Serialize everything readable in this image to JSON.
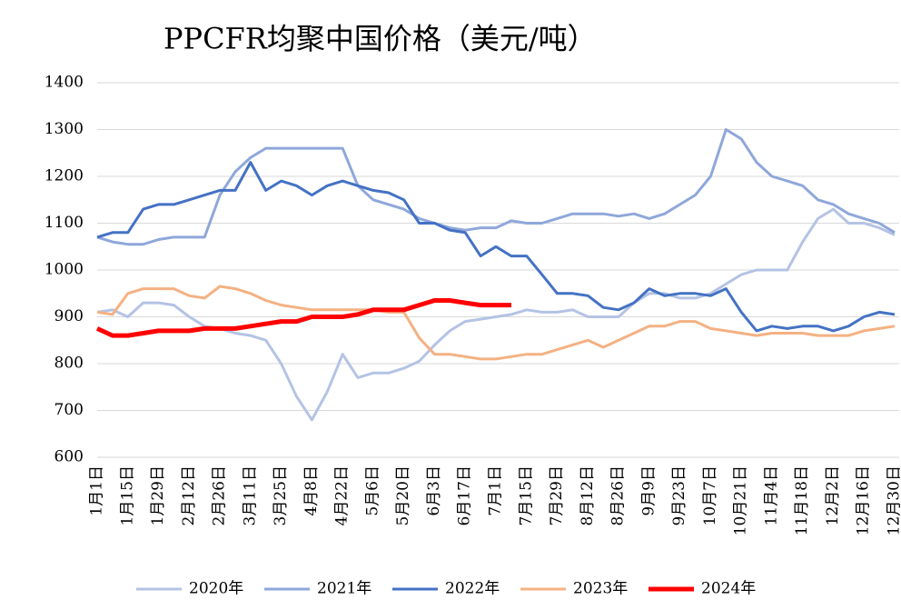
{
  "chart_data": {
    "type": "line",
    "title": "PPCFR均聚中国价格（美元/吨）",
    "categories": [
      "1月1日",
      null,
      "1月15日",
      null,
      "1月29日",
      null,
      "2月12日",
      null,
      "2月26日",
      null,
      "3月11日",
      null,
      "3月25日",
      null,
      "4月8日",
      null,
      "4月22日",
      null,
      "5月6日",
      null,
      "5月20日",
      null,
      "6月3日",
      null,
      "6月17日",
      null,
      "7月1日",
      null,
      "7月15日",
      null,
      "7月29日",
      null,
      "8月12日",
      null,
      "8月26日",
      null,
      "9月9日",
      null,
      "9月23日",
      null,
      "10月7日",
      null,
      "10月21日",
      null,
      "11月4日",
      null,
      "11月18日",
      null,
      "12月2日",
      null,
      "12月16日",
      null,
      "12月30日"
    ],
    "series": [
      {
        "name": "2020年",
        "color": "#b4c3e4",
        "values": [
          910,
          915,
          900,
          930,
          930,
          925,
          900,
          880,
          875,
          865,
          860,
          850,
          800,
          730,
          680,
          740,
          820,
          770,
          780,
          780,
          790,
          805,
          840,
          870,
          890,
          895,
          900,
          905,
          915,
          910,
          910,
          915,
          900,
          900,
          900,
          930,
          950,
          950,
          940,
          940,
          950,
          970,
          990,
          1000,
          1000,
          1000,
          1060,
          1110,
          1130,
          1100,
          1100,
          1090,
          1075
        ]
      },
      {
        "name": "2021年",
        "color": "#8fa7da",
        "values": [
          1070,
          1060,
          1055,
          1055,
          1065,
          1070,
          1070,
          1070,
          1160,
          1210,
          1240,
          1260,
          1260,
          1260,
          1260,
          1260,
          1260,
          1180,
          1150,
          1140,
          1130,
          1110,
          1100,
          1090,
          1085,
          1090,
          1090,
          1105,
          1100,
          1100,
          1110,
          1120,
          1120,
          1120,
          1115,
          1120,
          1110,
          1120,
          1140,
          1160,
          1200,
          1300,
          1280,
          1230,
          1200,
          1190,
          1180,
          1150,
          1140,
          1120,
          1110,
          1100,
          1080
        ]
      },
      {
        "name": "2022年",
        "color": "#4472c4",
        "values": [
          1070,
          1080,
          1080,
          1130,
          1140,
          1140,
          1150,
          1160,
          1170,
          1170,
          1230,
          1170,
          1190,
          1180,
          1160,
          1180,
          1190,
          1180,
          1170,
          1165,
          1150,
          1100,
          1100,
          1085,
          1080,
          1030,
          1050,
          1030,
          1030,
          990,
          950,
          950,
          945,
          920,
          915,
          930,
          960,
          945,
          950,
          950,
          945,
          960,
          910,
          870,
          880,
          875,
          880,
          880,
          870,
          880,
          900,
          910,
          905
        ]
      },
      {
        "name": "2023年",
        "color": "#f4b183",
        "values": [
          910,
          905,
          950,
          960,
          960,
          960,
          945,
          940,
          965,
          960,
          950,
          935,
          925,
          920,
          915,
          915,
          915,
          915,
          915,
          910,
          910,
          855,
          820,
          820,
          815,
          810,
          810,
          815,
          820,
          820,
          830,
          840,
          850,
          835,
          850,
          865,
          880,
          880,
          890,
          890,
          875,
          870,
          865,
          860,
          865,
          865,
          865,
          860,
          860,
          860,
          870,
          875,
          880
        ]
      },
      {
        "name": "2024年",
        "color": "#ff0000",
        "values": [
          875,
          860,
          860,
          865,
          870,
          870,
          870,
          875,
          875,
          875,
          880,
          885,
          890,
          890,
          900,
          900,
          900,
          905,
          915,
          915,
          915,
          925,
          935,
          935,
          930,
          925,
          925,
          925,
          null,
          null,
          null,
          null,
          null,
          null,
          null,
          null,
          null,
          null,
          null,
          null,
          null,
          null,
          null,
          null,
          null,
          null,
          null,
          null,
          null,
          null,
          null,
          null,
          null
        ]
      }
    ],
    "ylim": [
      600,
      1400
    ],
    "yticks": [
      600,
      700,
      800,
      900,
      1000,
      1100,
      1200,
      1300,
      1400
    ],
    "grid": true,
    "legend": "bottom"
  }
}
